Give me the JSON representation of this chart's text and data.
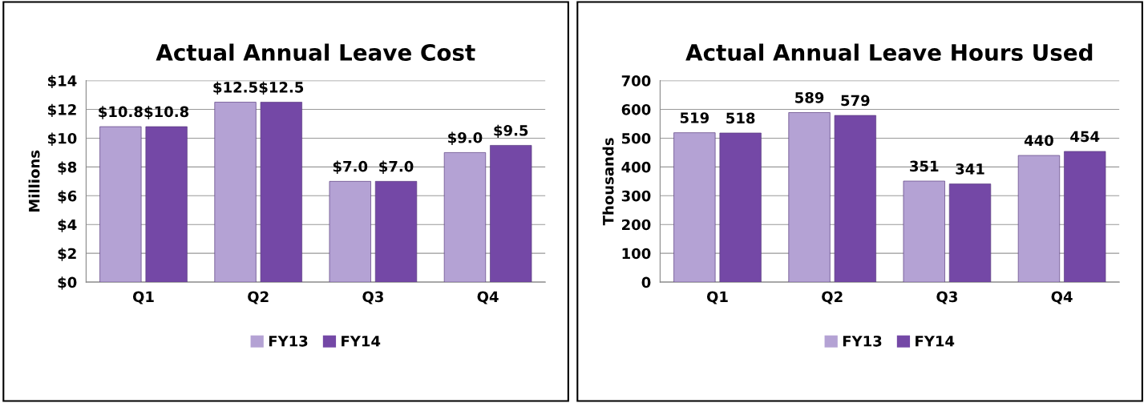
{
  "chart_data": [
    {
      "type": "bar",
      "title": "Actual Annual Leave Cost",
      "ylabel": "Millions",
      "categories": [
        "Q1",
        "Q2",
        "Q3",
        "Q4"
      ],
      "series": [
        {
          "name": "FY13",
          "color": "#b4a2d4",
          "values": [
            10.8,
            12.5,
            7.0,
            9.0
          ],
          "value_labels": [
            "$10.8",
            "$12.5",
            "$7.0",
            "$9.0"
          ]
        },
        {
          "name": "FY14",
          "color": "#7448a6",
          "values": [
            10.8,
            12.5,
            7.0,
            9.5
          ],
          "value_labels": [
            "$10.8",
            "$12.5",
            "$7.0",
            "$9.5"
          ]
        }
      ],
      "ylim": [
        0,
        14
      ],
      "yticks": [
        {
          "value": 0,
          "label": "$0"
        },
        {
          "value": 2,
          "label": "$2"
        },
        {
          "value": 4,
          "label": "$4"
        },
        {
          "value": 6,
          "label": "$6"
        },
        {
          "value": 8,
          "label": "$8"
        },
        {
          "value": 10,
          "label": "$10"
        },
        {
          "value": 12,
          "label": "$12"
        },
        {
          "value": 14,
          "label": "$14"
        }
      ],
      "grid": "y",
      "legend": "bottom"
    },
    {
      "type": "bar",
      "title": "Actual Annual Leave Hours Used",
      "ylabel": "Thousands",
      "categories": [
        "Q1",
        "Q2",
        "Q3",
        "Q4"
      ],
      "series": [
        {
          "name": "FY13",
          "color": "#b4a2d4",
          "values": [
            519,
            589,
            351,
            440
          ]
        },
        {
          "name": "FY14",
          "color": "#7448a6",
          "values": [
            518,
            579,
            341,
            454
          ]
        }
      ],
      "ylim": [
        0,
        700
      ],
      "yticks": [
        0,
        100,
        200,
        300,
        400,
        500,
        600,
        700
      ],
      "data_labels": true,
      "grid": "y",
      "legend": "bottom"
    }
  ]
}
